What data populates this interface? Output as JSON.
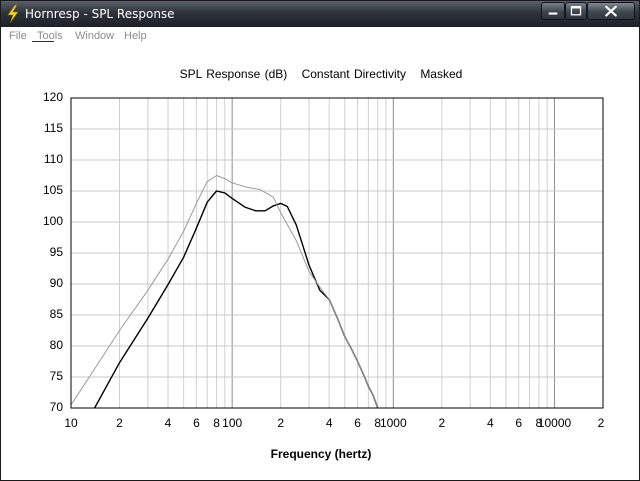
{
  "window": {
    "title": "Hornresp - SPL Response",
    "buttons": {
      "minimize": "minimize",
      "maximize": "maximize",
      "close": "close"
    }
  },
  "menu": {
    "items": [
      "File",
      "Tools",
      "Window",
      "Help"
    ],
    "color": "#8c8c8c"
  },
  "chart_data": {
    "type": "line",
    "title_parts": [
      "SPL Response (dB)",
      "Constant Directivity",
      "Masked"
    ],
    "xlabel": "Frequency (hertz)",
    "ylabel": "",
    "x_scale": "log",
    "xlim": [
      10,
      20000
    ],
    "ylim": [
      70,
      120
    ],
    "grid": true,
    "y_ticks": [
      120,
      115,
      110,
      105,
      100,
      95,
      90,
      85,
      80,
      75,
      70
    ],
    "x_tick_labels": [
      {
        "value": 10,
        "label": "10"
      },
      {
        "value": 20,
        "label": "2"
      },
      {
        "value": 40,
        "label": "4"
      },
      {
        "value": 60,
        "label": "6"
      },
      {
        "value": 80,
        "label": "8"
      },
      {
        "value": 100,
        "label": "100"
      },
      {
        "value": 200,
        "label": "2"
      },
      {
        "value": 400,
        "label": "4"
      },
      {
        "value": 600,
        "label": "6"
      },
      {
        "value": 800,
        "label": "8"
      },
      {
        "value": 1000,
        "label": "1000"
      },
      {
        "value": 2000,
        "label": "2"
      },
      {
        "value": 4000,
        "label": "4"
      },
      {
        "value": 6000,
        "label": "6"
      },
      {
        "value": 8000,
        "label": "8"
      },
      {
        "value": 10000,
        "label": "10000"
      },
      {
        "value": 20000,
        "label": "2"
      }
    ],
    "series": [
      {
        "color": "#000000",
        "points": [
          [
            14,
            70
          ],
          [
            20,
            77.3
          ],
          [
            30,
            84.5
          ],
          [
            40,
            89.9
          ],
          [
            50,
            94.3
          ],
          [
            60,
            99
          ],
          [
            70,
            103.2
          ],
          [
            80,
            105
          ],
          [
            90,
            104.7
          ],
          [
            100,
            103.8
          ],
          [
            120,
            102.4
          ],
          [
            140,
            101.8
          ],
          [
            160,
            101.8
          ],
          [
            180,
            102.6
          ],
          [
            200,
            103
          ],
          [
            220,
            102.5
          ],
          [
            250,
            99.5
          ],
          [
            280,
            95.5
          ],
          [
            300,
            93
          ],
          [
            350,
            89
          ],
          [
            400,
            87.5
          ],
          [
            450,
            84.5
          ],
          [
            500,
            81.5
          ],
          [
            550,
            79.5
          ],
          [
            600,
            77.5
          ],
          [
            650,
            75.5
          ],
          [
            700,
            73.5
          ],
          [
            750,
            72
          ],
          [
            800,
            70
          ]
        ]
      },
      {
        "color": "#9a9a9a",
        "points": [
          [
            10,
            70.5
          ],
          [
            15,
            77.5
          ],
          [
            20,
            82.5
          ],
          [
            30,
            89
          ],
          [
            40,
            94
          ],
          [
            50,
            98.5
          ],
          [
            60,
            103
          ],
          [
            70,
            106.5
          ],
          [
            80,
            107.5
          ],
          [
            90,
            107
          ],
          [
            100,
            106.3
          ],
          [
            120,
            105.7
          ],
          [
            150,
            105.2
          ],
          [
            180,
            104
          ],
          [
            200,
            101.5
          ],
          [
            250,
            97
          ],
          [
            300,
            92
          ],
          [
            350,
            89.5
          ],
          [
            400,
            87.5
          ],
          [
            450,
            84.5
          ],
          [
            500,
            81.5
          ],
          [
            550,
            79.5
          ],
          [
            600,
            77.5
          ],
          [
            650,
            75.5
          ],
          [
            700,
            73.5
          ],
          [
            750,
            72
          ],
          [
            800,
            70
          ]
        ]
      }
    ]
  }
}
